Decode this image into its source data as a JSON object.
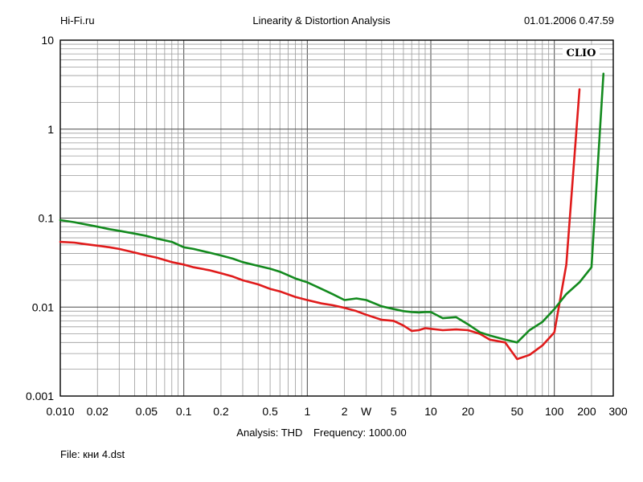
{
  "header": {
    "site": "Hi-Fi.ru",
    "title": "Linearity & Distortion Analysis",
    "timestamp": "01.01.2006 0.47.59"
  },
  "footer": {
    "analysis": "Analysis: THD",
    "frequency": "Frequency: 1000.00",
    "file": "File: кни 4.dst"
  },
  "chart_data": {
    "type": "line",
    "brand": "CLIO",
    "xscale": "log",
    "yscale": "log",
    "xlim": [
      0.01,
      300
    ],
    "ylim": [
      0.001,
      10
    ],
    "grid": true,
    "x_ticks": [
      "0.010",
      "0.02",
      "0.05",
      "0.1",
      "0.2",
      "0.5",
      "1",
      "2",
      "W",
      "5",
      "10",
      "20",
      "50",
      "100",
      "200",
      "300"
    ],
    "y_ticks": [
      "0.001",
      "0.01",
      "0.1",
      "1",
      "10"
    ],
    "series": [
      {
        "color": "#e01b1b",
        "x": [
          0.01,
          0.013,
          0.016,
          0.02,
          0.025,
          0.03,
          0.04,
          0.05,
          0.06,
          0.08,
          0.1,
          0.12,
          0.16,
          0.2,
          0.25,
          0.3,
          0.4,
          0.5,
          0.6,
          0.8,
          1,
          1.3,
          1.6,
          2,
          2.5,
          3,
          4,
          5,
          6,
          7,
          8,
          9,
          10,
          12.5,
          16,
          20,
          25,
          30,
          40,
          50,
          63,
          80,
          100,
          125,
          160
        ],
        "y": [
          0.054,
          0.053,
          0.051,
          0.049,
          0.047,
          0.045,
          0.041,
          0.038,
          0.036,
          0.032,
          0.03,
          0.028,
          0.026,
          0.024,
          0.022,
          0.02,
          0.018,
          0.016,
          0.015,
          0.013,
          0.012,
          0.011,
          0.0105,
          0.0098,
          0.009,
          0.0082,
          0.0072,
          0.007,
          0.0062,
          0.0054,
          0.0055,
          0.0058,
          0.0057,
          0.0055,
          0.0056,
          0.0055,
          0.005,
          0.0043,
          0.004,
          0.0026,
          0.0029,
          0.0037,
          0.0052,
          0.03,
          2.8
        ]
      },
      {
        "color": "#138a1e",
        "x": [
          0.01,
          0.013,
          0.016,
          0.02,
          0.025,
          0.03,
          0.04,
          0.05,
          0.06,
          0.08,
          0.1,
          0.12,
          0.16,
          0.2,
          0.25,
          0.3,
          0.4,
          0.5,
          0.6,
          0.8,
          1,
          1.3,
          1.6,
          2,
          2.5,
          3,
          4,
          5,
          6,
          7,
          8,
          9,
          10,
          12.5,
          16,
          20,
          25,
          30,
          40,
          50,
          63,
          80,
          100,
          125,
          160,
          200,
          250
        ],
        "y": [
          0.095,
          0.09,
          0.085,
          0.08,
          0.075,
          0.072,
          0.067,
          0.063,
          0.059,
          0.054,
          0.047,
          0.045,
          0.041,
          0.038,
          0.035,
          0.032,
          0.029,
          0.027,
          0.025,
          0.021,
          0.019,
          0.016,
          0.014,
          0.012,
          0.0125,
          0.012,
          0.0102,
          0.0095,
          0.009,
          0.0088,
          0.0087,
          0.0088,
          0.0088,
          0.0075,
          0.0077,
          0.0064,
          0.0052,
          0.0048,
          0.0043,
          0.004,
          0.0055,
          0.0068,
          0.0095,
          0.014,
          0.019,
          0.028,
          4.2
        ]
      }
    ]
  }
}
